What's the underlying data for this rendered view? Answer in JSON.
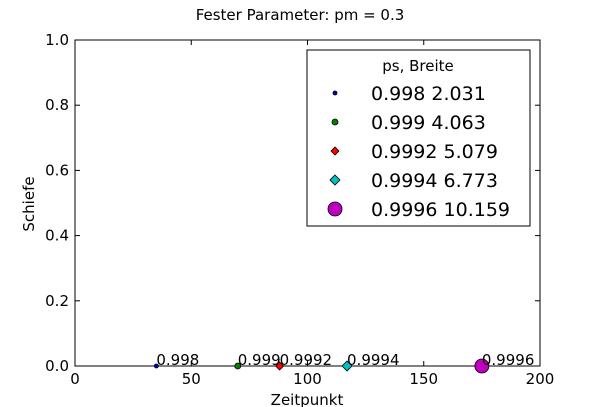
{
  "chart_data": {
    "type": "scatter",
    "title": "Fester Parameter: pm = 0.3",
    "xlabel": "Zeitpunkt",
    "ylabel": "Schiefe",
    "xlim": [
      0,
      200
    ],
    "ylim": [
      0,
      1.0
    ],
    "xticks": [
      "0",
      "50",
      "100",
      "150",
      "200"
    ],
    "yticks": [
      "0.0",
      "0.2",
      "0.4",
      "0.6",
      "0.8",
      "1.0"
    ],
    "grid": false,
    "legend": {
      "title": "ps,  Breite",
      "placement": "upper right"
    },
    "series": [
      {
        "name": "0.998  2.031",
        "marker": "circle",
        "color": "#0000bf",
        "size_rank": 1,
        "label": "0.998",
        "x": [
          35
        ],
        "y": [
          0.0
        ]
      },
      {
        "name": "0.999  4.063",
        "marker": "circle",
        "color": "#007f00",
        "size_rank": 2,
        "label": "0.999",
        "x": [
          70
        ],
        "y": [
          0.0
        ]
      },
      {
        "name": "0.9992  5.079",
        "marker": "diamond",
        "color": "#ff0000",
        "size_rank": 3,
        "label": "0.9992",
        "x": [
          88
        ],
        "y": [
          0.0
        ]
      },
      {
        "name": "0.9994  6.773",
        "marker": "diamond",
        "color": "#00bfbf",
        "size_rank": 4,
        "label": "0.9994",
        "x": [
          117
        ],
        "y": [
          0.0
        ]
      },
      {
        "name": "0.9996  10.159",
        "marker": "circle",
        "color": "#bf00bf",
        "size_rank": 5,
        "label": "0.9996",
        "x": [
          175
        ],
        "y": [
          0.0
        ]
      }
    ]
  }
}
